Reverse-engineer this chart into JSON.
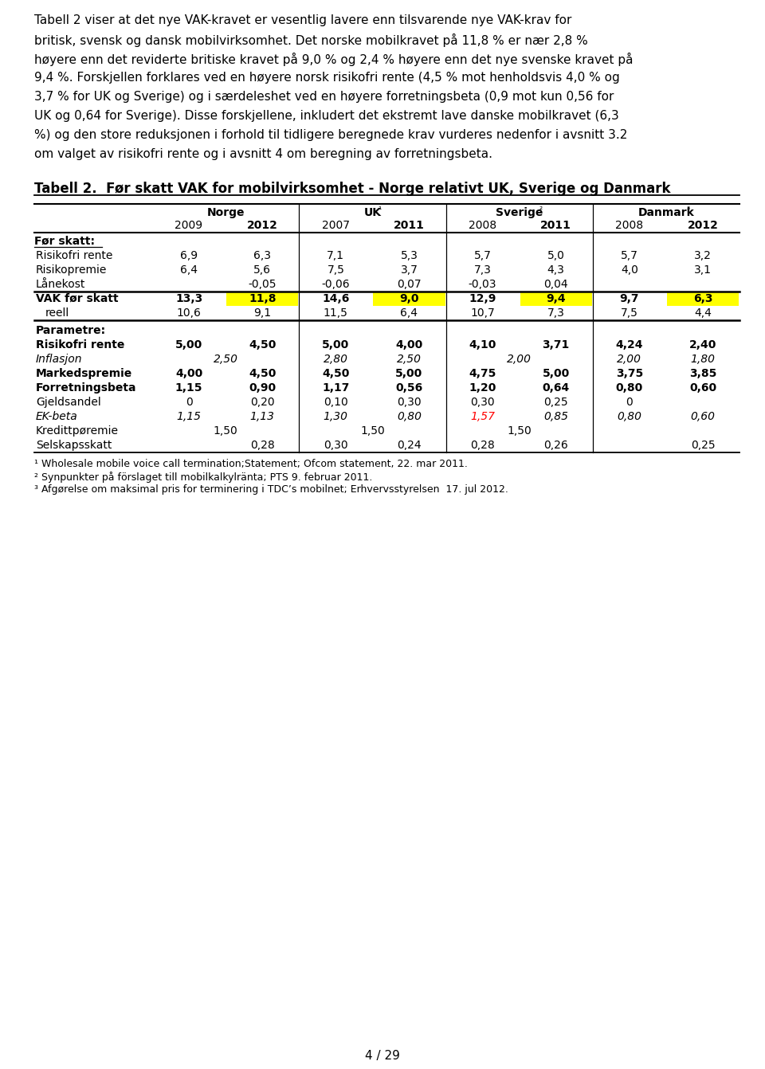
{
  "intro_lines": [
    "Tabell 2 viser at det nye VAK-kravet er vesentlig lavere enn tilsvarende nye VAK-krav for",
    "britisk, svensk og dansk mobilvirksomhet. Det norske mobilkravet på 11,8 % er nær 2,8 %",
    "høyere enn det reviderte britiske kravet på 9,0 % og 2,4 % høyere enn det nye svenske kravet på",
    "9,4 %. Forskjellen forklares ved en høyere norsk risikofri rente (4,5 % mot henholdsvis 4,0 % og",
    "3,7 % for UK og Sverige) og i særdeleshet ved en høyere forretningsbeta (0,9 mot kun 0,56 for",
    "UK og 0,64 for Sverige). Disse forskjellene, inkludert det ekstremt lave danske mobilkravet (6,3",
    "%) og den store reduksjonen i forhold til tidligere beregnede krav vurderes nedenfor i avsnitt 3.2",
    "om valget av risikofri rente og i avsnitt 4 om beregning av forretningsbeta."
  ],
  "table_title": "Tabell 2.  Før skatt VAK for mobilvirksomhet - Norge relativt UK, Sverige og Danmark",
  "col_groups": [
    "Norge",
    "UK",
    "Sverige",
    "Danmark"
  ],
  "col_group_sups": [
    "",
    "¹",
    "²",
    "³"
  ],
  "col_years": [
    [
      "2009",
      "2012"
    ],
    [
      "2007",
      "2011"
    ],
    [
      "2008",
      "2011"
    ],
    [
      "2008",
      "2012"
    ]
  ],
  "col_years_bold": [
    [
      false,
      true
    ],
    [
      false,
      true
    ],
    [
      false,
      true
    ],
    [
      false,
      true
    ]
  ],
  "section1_label": "Før skatt:",
  "rows_section1": [
    {
      "label": "Risikofri rente",
      "bold": false,
      "italic": false,
      "values": [
        "6,9",
        "6,3",
        "7,1",
        "5,3",
        "5,7",
        "5,0",
        "5,7",
        "3,2"
      ]
    },
    {
      "label": "Risikopremie",
      "bold": false,
      "italic": false,
      "values": [
        "6,4",
        "5,6",
        "7,5",
        "3,7",
        "7,3",
        "4,3",
        "4,0",
        "3,1"
      ]
    },
    {
      "label": "Lånekost",
      "bold": false,
      "italic": false,
      "values": [
        "",
        "-0,05",
        "-0,06",
        "0,07",
        "-0,03",
        "0,04",
        "",
        ""
      ]
    }
  ],
  "vak_row": {
    "label": "VAK før skatt",
    "values": [
      "13,3",
      "11,8",
      "14,6",
      "9,0",
      "12,9",
      "9,4",
      "9,7",
      "6,3"
    ],
    "highlight_cols": [
      1,
      3,
      5,
      7
    ],
    "highlight_color": "#FFFF00"
  },
  "reell_row": {
    "label": "reell",
    "values": [
      "10,6",
      "9,1",
      "11,5",
      "6,4",
      "10,7",
      "7,3",
      "7,5",
      "4,4"
    ]
  },
  "section2_label": "Parametre:",
  "rows_section2": [
    {
      "label": "Risikofri rente",
      "bold": true,
      "italic": false,
      "special": null,
      "values": [
        "5,00",
        "4,50",
        "5,00",
        "4,00",
        "4,10",
        "3,71",
        "4,24",
        "2,40"
      ],
      "red_col": -1
    },
    {
      "label": "Inflasjon",
      "bold": false,
      "italic": true,
      "special": "inflasjon",
      "values": [],
      "red_col": -1
    },
    {
      "label": "Markedspremie",
      "bold": true,
      "italic": false,
      "special": null,
      "values": [
        "4,00",
        "4,50",
        "4,50",
        "5,00",
        "4,75",
        "5,00",
        "3,75",
        "3,85"
      ],
      "red_col": -1
    },
    {
      "label": "Forretningsbeta",
      "bold": true,
      "italic": false,
      "special": null,
      "values": [
        "1,15",
        "0,90",
        "1,17",
        "0,56",
        "1,20",
        "0,64",
        "0,80",
        "0,60"
      ],
      "red_col": -1
    },
    {
      "label": "Gjeldsandel",
      "bold": false,
      "italic": false,
      "special": null,
      "values": [
        "0",
        "0,20",
        "0,10",
        "0,30",
        "0,30",
        "0,25",
        "0",
        ""
      ],
      "red_col": -1
    },
    {
      "label": "EK-beta",
      "bold": false,
      "italic": true,
      "special": null,
      "values": [
        "1,15",
        "1,13",
        "1,30",
        "0,80",
        "1,57",
        "0,85",
        "0,80",
        "0,60"
      ],
      "red_col": 4
    },
    {
      "label": "Kredittpøremie",
      "bold": false,
      "italic": false,
      "special": "kreditt",
      "values": [],
      "red_col": -1
    },
    {
      "label": "Selskapsskatt",
      "bold": false,
      "italic": false,
      "special": null,
      "values": [
        "",
        "0,28",
        "0,30",
        "0,24",
        "0,28",
        "0,26",
        "",
        "0,25"
      ],
      "red_col": -1
    }
  ],
  "footnotes": [
    "¹ Wholesale mobile voice call termination;Statement; Ofcom statement, 22. mar 2011.",
    "² Synpunkter på förslaget till mobilkalkylränta; PTS 9. februar 2011.",
    "³ Afgørelse om maksimal pris for terminering i TDC’s mobilnet; Erhvervsstyrelsen  17. jul 2012."
  ],
  "page_number": "4 / 29",
  "background_color": "#FFFFFF"
}
